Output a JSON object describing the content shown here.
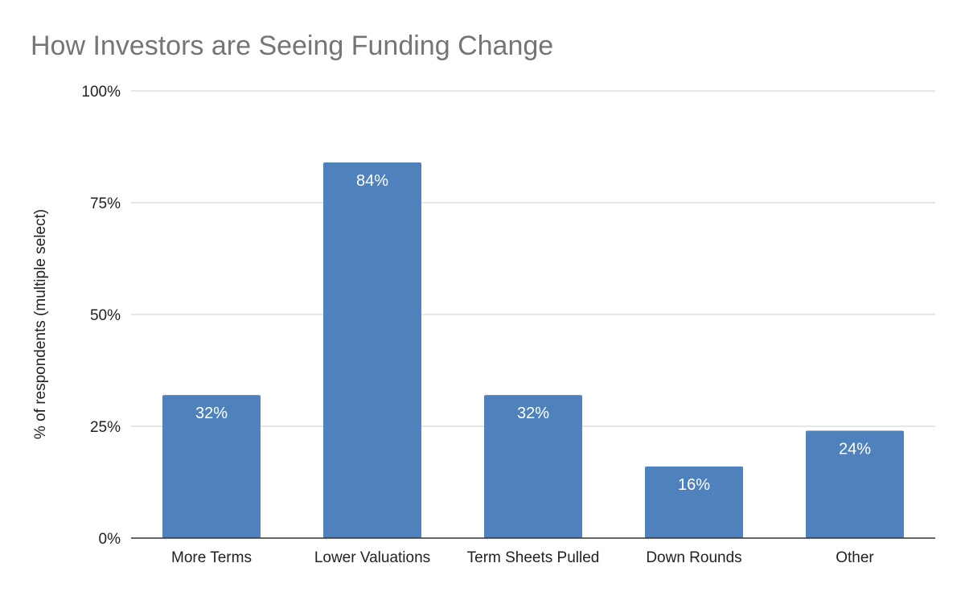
{
  "chart_data": {
    "type": "bar",
    "title": "How Investors are Seeing Funding Change",
    "ylabel": "% of respondents (multiple select)",
    "xlabel": "",
    "categories": [
      "More Terms",
      "Lower Valuations",
      "Term Sheets Pulled",
      "Down Rounds",
      "Other"
    ],
    "values": [
      32,
      84,
      32,
      16,
      24
    ],
    "data_labels": [
      "32%",
      "84%",
      "32%",
      "16%",
      "24%"
    ],
    "ylim": [
      0,
      100
    ],
    "yticks": [
      0,
      25,
      50,
      75,
      100
    ],
    "ytick_labels": [
      "0%",
      "25%",
      "50%",
      "75%",
      "100%"
    ],
    "grid": true,
    "legend": "none",
    "bar_color": "#4f81bd"
  }
}
